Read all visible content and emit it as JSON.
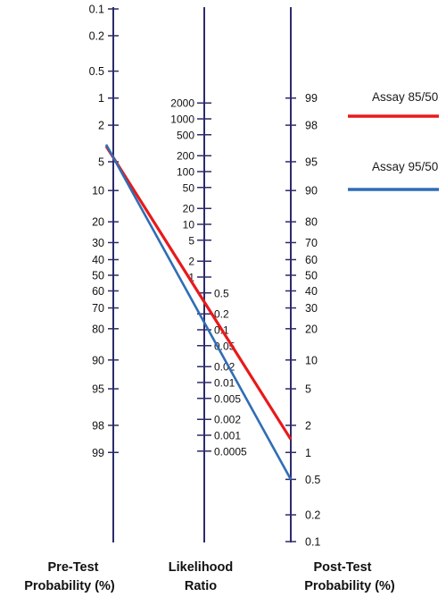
{
  "nomogram": {
    "axes": {
      "pre_test": {
        "title_lines": [
          "Pre-Test",
          "Probability (%)"
        ],
        "ticks": [
          "0.1",
          "0.2",
          "0.5",
          "1",
          "2",
          "5",
          "10",
          "20",
          "30",
          "40",
          "50",
          "60",
          "70",
          "80",
          "90",
          "95",
          "98",
          "99"
        ]
      },
      "likelihood_ratio": {
        "title_lines": [
          "Likelihood",
          "Ratio"
        ],
        "ticks_left": [
          "2000",
          "1000",
          "500",
          "200",
          "100",
          "50",
          "20",
          "10",
          "5",
          "2",
          "1"
        ],
        "ticks_right": [
          "0.5",
          "0.2",
          "0.1",
          "0.05",
          "0.02",
          "0.01",
          "0.005",
          "0.002",
          "0.001",
          "0.0005"
        ]
      },
      "post_test": {
        "title_lines": [
          "Post-Test",
          "Probability (%)"
        ],
        "ticks": [
          "99",
          "98",
          "95",
          "90",
          "80",
          "70",
          "60",
          "50",
          "40",
          "30",
          "20",
          "10",
          "5",
          "2",
          "1",
          "0.5",
          "0.2",
          "0.1"
        ]
      }
    },
    "lines": [
      {
        "name": "Assay 85/50",
        "color": "#e8191b",
        "pre_test": 4.5,
        "likelihood_ratio": 0.3,
        "post_test": 1.4
      },
      {
        "name": "Assay 95/50",
        "color": "#2f6db5",
        "pre_test": 4.5,
        "likelihood_ratio": 0.1,
        "post_test": 0.5
      }
    ],
    "axis_color": "#2b2b6b"
  }
}
